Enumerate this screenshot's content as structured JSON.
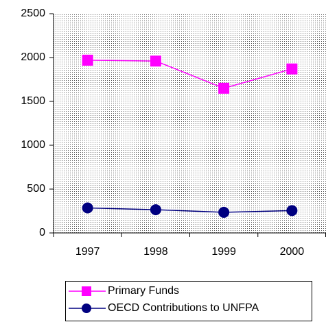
{
  "chart_data": {
    "type": "line",
    "categories": [
      "1997",
      "1998",
      "1999",
      "2000"
    ],
    "series": [
      {
        "name": "Primary Funds",
        "color": "#ff00ff",
        "marker": "square",
        "values": [
          1970,
          1960,
          1650,
          1870
        ]
      },
      {
        "name": "OECD Contributions to UNFPA",
        "color": "#000080",
        "marker": "circle",
        "values": [
          285,
          265,
          235,
          255
        ]
      }
    ],
    "ylim": [
      0,
      2500
    ],
    "yticks": [
      0,
      500,
      1000,
      1500,
      2000,
      2500
    ]
  }
}
